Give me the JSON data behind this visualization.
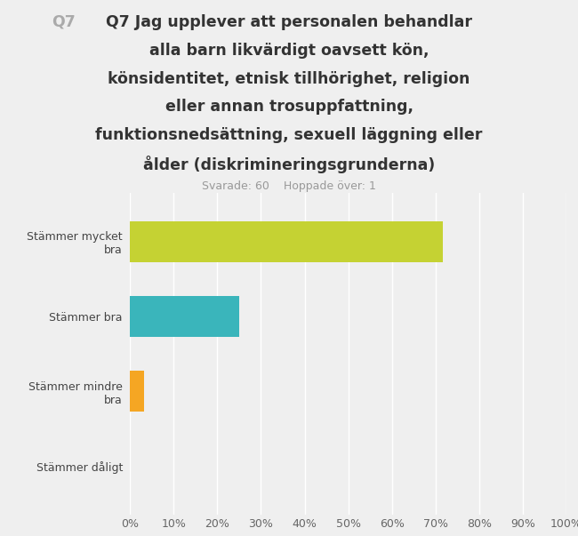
{
  "title_q": "Q7",
  "title_line1": " Jag upplever att personalen behandlar",
  "title_rest": "alla barn likvärdigt oavsett kön,\nkönsidentitet, etnisk tillhörighet, religion\neller annan trosuppfattning,\nfunktionsnedsättning, sexuell läggning eller\nålder (diskrimineringsgrunderna)",
  "subtitle": "Svarade: 60    Hoppade över: 1",
  "categories": [
    "Stämmer mycket\nbra",
    "Stämmer bra",
    "Stämmer mindre\nbra",
    "Stämmer dåligt"
  ],
  "values": [
    71.7,
    25.0,
    3.3,
    0.0
  ],
  "bar_colors": [
    "#c5d233",
    "#3ab5bb",
    "#f5a623",
    "#cccccc"
  ],
  "xlim": [
    0,
    1.0
  ],
  "xticks": [
    0.0,
    0.1,
    0.2,
    0.3,
    0.4,
    0.5,
    0.6,
    0.7,
    0.8,
    0.9,
    1.0
  ],
  "xtick_labels": [
    "0%",
    "10%",
    "20%",
    "30%",
    "40%",
    "50%",
    "60%",
    "70%",
    "80%",
    "90%",
    "100%"
  ],
  "background_color": "#efefef",
  "plot_bg_color": "#efefef",
  "bar_height": 0.55,
  "title_fontsize": 12.5,
  "subtitle_fontsize": 9,
  "tick_fontsize": 9,
  "ylabel_fontsize": 9
}
